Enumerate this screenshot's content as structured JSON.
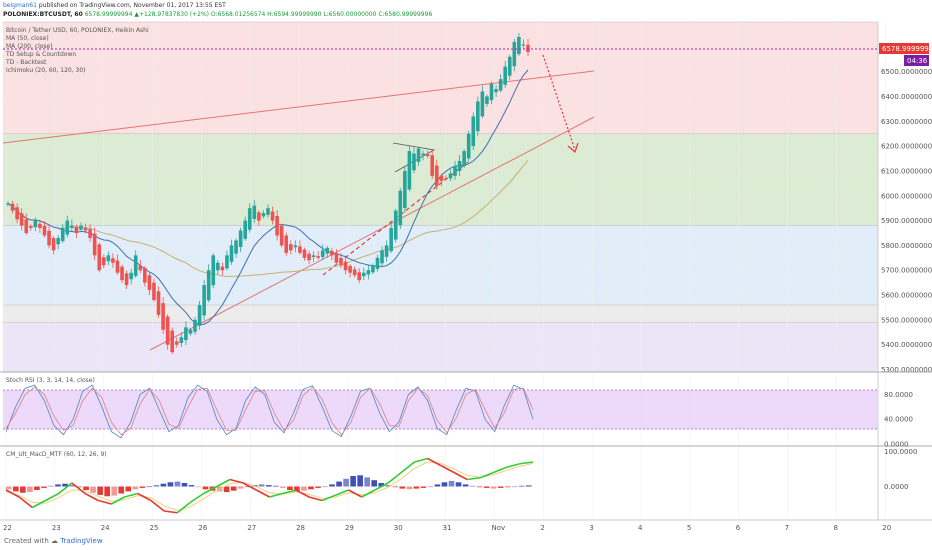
{
  "header": {
    "author": "beigman61",
    "published": " published on TradingView.com, November 01, 2017 13:55 EST",
    "symbol": "POLONIEX:BTCUSDT, 60",
    "ohlc": "6578.99999994 ▲+128.97837830 (+2%) O:6568.01256574 H:6594.99999990 L:6560.00000000 C:6580.99999996"
  },
  "legend": {
    "title": "Bitcoin / Tether USD, 60, POLONIEX, Heikin Ashi",
    "lines": [
      "MA (50, close)",
      "MA (200, close)",
      "TD Setup & Countdown",
      "TD - Backtest",
      "Ichimoku (20, 60, 120, 30)"
    ]
  },
  "price_badge": "6578.99999994",
  "time_badge": "04:36",
  "rsi_title": "Stoch RSI (3, 3, 14, 14, close)",
  "macd_title": "CM_Ult_MacD_MTF (60, 12, 26, 9)",
  "footer": {
    "created": "Created with",
    "brand": "TradingView"
  },
  "colors": {
    "up": "#26a69a",
    "down": "#ef5350",
    "ma50": "#3f6fb6",
    "ma200": "#c9b070",
    "red_zone": "#fbe1e1",
    "green_zone": "#dcebd4",
    "blue_zone": "#e1eef9",
    "purple_zone": "#ebe6f7",
    "rsi_band": "#e8d0f7",
    "price_line": "#9c27b0"
  },
  "chart_data": [
    {
      "type": "candlestick",
      "title": "Bitcoin / Tether USD, 60, POLONIEX, Heikin Ashi",
      "x_ticks": [
        "22",
        "23",
        "24",
        "25",
        "26",
        "27",
        "28",
        "29",
        "30",
        "31",
        "Nov",
        "2",
        "3",
        "4",
        "5",
        "6",
        "7",
        "8",
        "20"
      ],
      "y_ticks": [
        "6500.00000000",
        "6400.00000000",
        "6300.00000000",
        "6200.00000000",
        "6100.00000000",
        "6000.00000000",
        "5900.00000000",
        "5800.00000000",
        "5700.00000000",
        "5600.00000000",
        "5500.00000000",
        "5400.00000000",
        "5300.00000000"
      ],
      "ylim": [
        5290,
        6700
      ],
      "last_price": 6578.99999994,
      "zones": [
        {
          "from": 6250,
          "to": 6700,
          "color": "red"
        },
        {
          "from": 5880,
          "to": 6250,
          "color": "green"
        },
        {
          "from": 5560,
          "to": 5880,
          "color": "blue"
        },
        {
          "from": 5490,
          "to": 5560,
          "color": "gray"
        },
        {
          "from": 5290,
          "to": 5490,
          "color": "purple"
        }
      ],
      "close": [
        5970,
        5940,
        5905,
        5880,
        5850,
        5870,
        5900,
        5870,
        5840,
        5800,
        5780,
        5830,
        5870,
        5900,
        5880,
        5850,
        5880,
        5860,
        5830,
        5760,
        5700,
        5720,
        5760,
        5730,
        5690,
        5660,
        5640,
        5690,
        5760,
        5700,
        5650,
        5620,
        5580,
        5520,
        5460,
        5400,
        5370,
        5400,
        5430,
        5470,
        5460,
        5500,
        5560,
        5640,
        5700,
        5760,
        5730,
        5700,
        5760,
        5800,
        5820,
        5860,
        5900,
        5950,
        5960,
        5900,
        5930,
        5950,
        5900,
        5840,
        5800,
        5770,
        5780,
        5800,
        5770,
        5750,
        5740,
        5760,
        5750,
        5780,
        5790,
        5760,
        5730,
        5720,
        5700,
        5690,
        5680,
        5660,
        5690,
        5700,
        5720,
        5750,
        5780,
        5800,
        5870,
        5940,
        6020,
        6100,
        6180,
        6170,
        6190,
        6170,
        6160,
        6080,
        6040,
        6060,
        6070,
        6090,
        6120,
        6140,
        6180,
        6250,
        6320,
        6380,
        6420,
        6400,
        6450,
        6430,
        6470,
        6520,
        6560,
        6620,
        6640,
        6610,
        6579
      ],
      "annotations": [
        "rising trendline",
        "upper channel line",
        "projected pullback arrow",
        "triangle pattern",
        "TD setup counts"
      ]
    },
    {
      "type": "line",
      "title": "Stoch RSI (3, 3, 14, 14, close)",
      "y_ticks": [
        "80.0000",
        "40.0000",
        "0.0000"
      ],
      "ylim": [
        0,
        100
      ],
      "band": [
        20,
        80
      ],
      "series": [
        {
          "name": "K",
          "values": [
            20,
            60,
            90,
            95,
            70,
            30,
            15,
            40,
            85,
            95,
            60,
            20,
            10,
            35,
            80,
            90,
            55,
            20,
            30,
            75,
            95,
            85,
            40,
            15,
            25,
            70,
            92,
            80,
            35,
            18,
            50,
            88,
            94,
            60,
            22,
            12,
            45,
            85,
            90,
            50,
            20,
            35,
            80,
            92,
            70,
            25,
            15,
            55,
            90,
            85,
            40,
            20,
            62,
            95,
            88,
            40
          ]
        },
        {
          "name": "D",
          "values": [
            25,
            50,
            80,
            92,
            80,
            45,
            22,
            30,
            70,
            90,
            75,
            35,
            15,
            25,
            65,
            88,
            70,
            32,
            25,
            60,
            88,
            90,
            55,
            22,
            22,
            55,
            85,
            86,
            50,
            22,
            38,
            78,
            92,
            72,
            35,
            15,
            35,
            75,
            90,
            65,
            30,
            28,
            70,
            90,
            78,
            38,
            18,
            42,
            80,
            88,
            55,
            26,
            50,
            88,
            90,
            55
          ]
        }
      ]
    },
    {
      "type": "bar",
      "title": "CM_Ult_MacD_MTF (60, 12, 26, 9)",
      "y_ticks": [
        "100.0000",
        "0.0000"
      ],
      "ylim": [
        -90,
        110
      ],
      "series": [
        {
          "name": "histogram",
          "values": [
            -8,
            -14,
            -18,
            -16,
            -10,
            -4,
            2,
            6,
            8,
            4,
            -2,
            -10,
            -18,
            -24,
            -28,
            -26,
            -20,
            -14,
            -8,
            -4,
            0,
            4,
            8,
            12,
            14,
            10,
            4,
            -2,
            -8,
            -12,
            -14,
            -16,
            -12,
            -6,
            0,
            4,
            6,
            4,
            2,
            -4,
            -10,
            -14,
            -12,
            -8,
            -4,
            0,
            6,
            14,
            22,
            30,
            32,
            26,
            18,
            10,
            4,
            -2,
            -6,
            -8,
            -6,
            -4,
            0,
            6,
            12,
            16,
            12,
            6,
            2,
            -2,
            -4,
            -6,
            -4,
            -2,
            0,
            2,
            3
          ]
        },
        {
          "name": "MACD",
          "values": [
            -10,
            -30,
            -60,
            -40,
            -20,
            10,
            -20,
            -40,
            -50,
            -30,
            -20,
            -40,
            -70,
            -75,
            -45,
            -20,
            0,
            20,
            10,
            -10,
            -30,
            -20,
            -10,
            -30,
            -40,
            -25,
            -10,
            -30,
            -10,
            10,
            40,
            70,
            80,
            60,
            40,
            20,
            25,
            40,
            55,
            65,
            70
          ]
        },
        {
          "name": "signal",
          "values": [
            -15,
            -25,
            -45,
            -48,
            -32,
            -10,
            -12,
            -28,
            -42,
            -38,
            -26,
            -32,
            -55,
            -68,
            -58,
            -35,
            -12,
            8,
            12,
            0,
            -18,
            -22,
            -15,
            -22,
            -34,
            -30,
            -18,
            -24,
            -18,
            -2,
            22,
            52,
            70,
            66,
            50,
            32,
            26,
            34,
            46,
            58,
            66
          ]
        }
      ]
    }
  ]
}
